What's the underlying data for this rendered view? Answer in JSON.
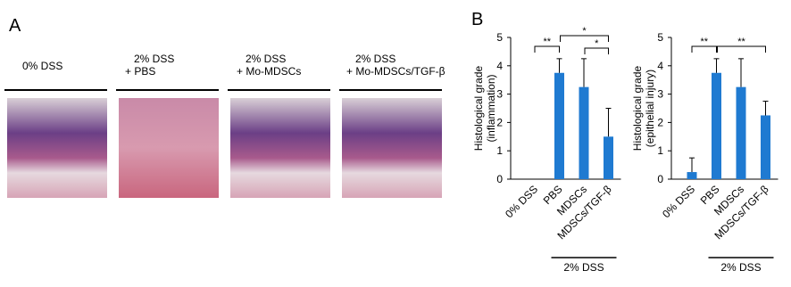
{
  "panel_a": {
    "label": "A",
    "captions": [
      [
        "0% DSS"
      ],
      [
        "2% DSS",
        "+ PBS"
      ],
      [
        "2% DSS",
        "+ Mo-MDSCs"
      ],
      [
        "2% DSS",
        "+ Mo-MDSCs/TGF-β"
      ]
    ]
  },
  "panel_b": {
    "label": "B"
  },
  "chart_data": [
    {
      "type": "bar",
      "ylabel": [
        "Histological grade",
        "(inflammation)"
      ],
      "categories": [
        "0% DSS",
        "PBS",
        "MDSCs",
        "MDSCs/TGF-β"
      ],
      "values": [
        0,
        3.75,
        3.25,
        1.5
      ],
      "errors": [
        0,
        0.5,
        1.0,
        1.0
      ],
      "color": "#1f7ad1",
      "ylim": [
        0,
        5
      ],
      "yticks": [
        0,
        1,
        2,
        3,
        4,
        5
      ],
      "significance": [
        {
          "from": 0,
          "to": 1,
          "label": "**"
        },
        {
          "from": 1,
          "to": 3,
          "label": "*"
        },
        {
          "from": 2,
          "to": 3,
          "label": "*"
        }
      ],
      "group": {
        "from": 1,
        "to": 3,
        "label": "2% DSS"
      }
    },
    {
      "type": "bar",
      "ylabel": [
        "Histological grade",
        "(epithelial injury)"
      ],
      "categories": [
        "0% DSS",
        "PBS",
        "MDSCs",
        "MDSCs/TGF-β"
      ],
      "values": [
        0.25,
        3.75,
        3.25,
        2.25
      ],
      "errors": [
        0.5,
        0.5,
        1.0,
        0.5
      ],
      "color": "#1f7ad1",
      "ylim": [
        0,
        5
      ],
      "yticks": [
        0,
        1,
        2,
        3,
        4,
        5
      ],
      "significance": [
        {
          "from": 0,
          "to": 1,
          "label": "**"
        },
        {
          "from": 1,
          "to": 3,
          "label": "**"
        }
      ],
      "group": {
        "from": 1,
        "to": 3,
        "label": "2% DSS"
      }
    }
  ]
}
